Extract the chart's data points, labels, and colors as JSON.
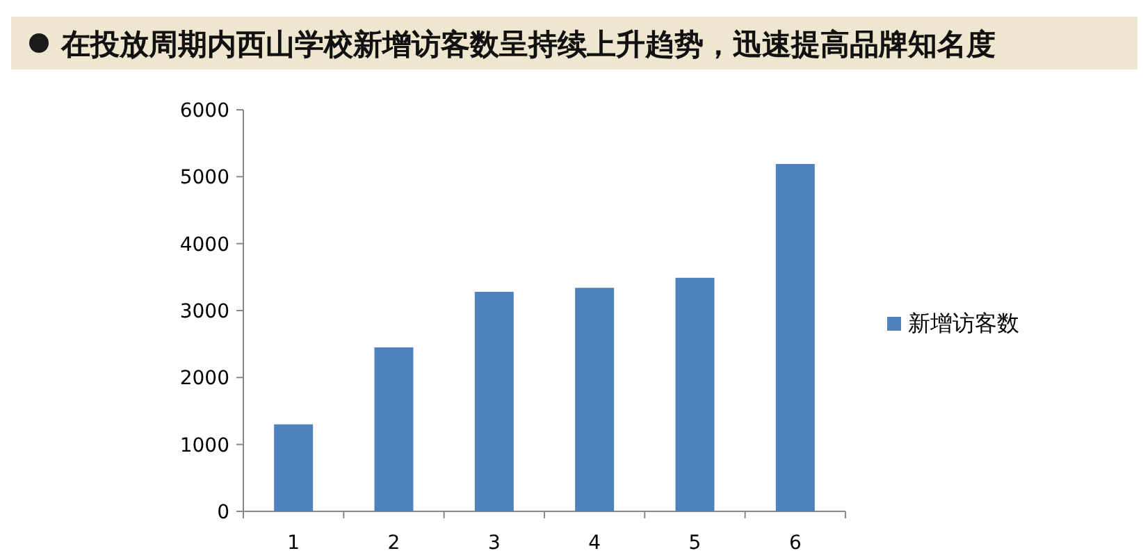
{
  "chart_data": {
    "type": "bar",
    "title": "在投放周期内西山学校新增访客数呈持续上升趋势，迅速提高品牌知名度",
    "categories": [
      "1",
      "2",
      "3",
      "4",
      "5",
      "6"
    ],
    "series": [
      {
        "name": "新增访客数",
        "color": "#4f81bd",
        "values": [
          1300,
          2450,
          3280,
          3340,
          3490,
          5190
        ]
      }
    ],
    "ylim": [
      0,
      6000
    ],
    "yticks": [
      0,
      1000,
      2000,
      3000,
      4000,
      5000,
      6000
    ],
    "legend": "right"
  }
}
